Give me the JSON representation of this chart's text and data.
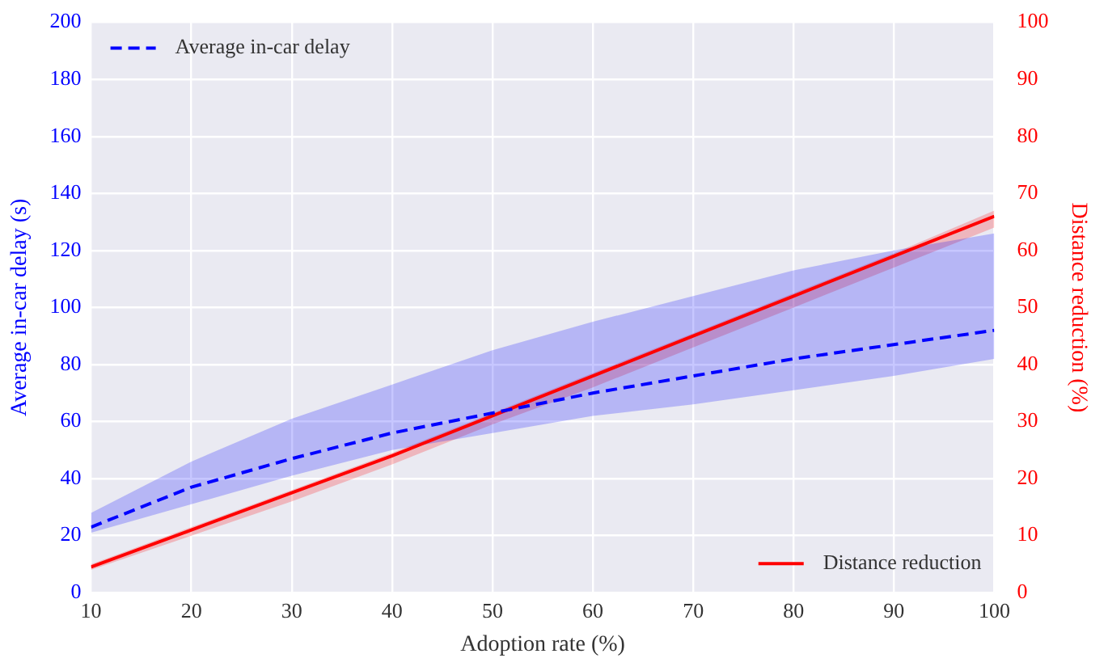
{
  "chart_data": {
    "type": "line",
    "xlabel": "Adoption rate (%)",
    "ylabel": "Average in-car delay (s)",
    "y2label": "Distance reduction (%)",
    "x": [
      10,
      20,
      30,
      40,
      50,
      60,
      70,
      80,
      90,
      100
    ],
    "xlim": [
      10,
      100
    ],
    "xticks": [
      10,
      20,
      30,
      40,
      50,
      60,
      70,
      80,
      90,
      100
    ],
    "ylim": [
      0,
      200
    ],
    "yticks": [
      0,
      20,
      40,
      60,
      80,
      100,
      120,
      140,
      160,
      180,
      200
    ],
    "y2lim": [
      0,
      100
    ],
    "y2ticks": [
      0,
      10,
      20,
      30,
      40,
      50,
      60,
      70,
      80,
      90,
      100
    ],
    "grid": true,
    "legend": "top left",
    "series": [
      {
        "name": "Average in-car delay",
        "color": "#0000ff",
        "line_style": "dashed",
        "values": [
          23,
          37,
          47,
          56,
          63,
          70,
          76,
          82,
          87,
          92
        ],
        "lower": [
          21,
          31,
          41,
          50,
          56,
          62,
          66,
          71,
          76,
          82
        ],
        "upper": [
          28,
          46,
          61,
          73,
          85,
          95,
          104,
          113,
          120,
          126
        ]
      },
      {
        "name": "Distance reduction",
        "color": "#ff0000",
        "line_style": "solid",
        "axis": "y2",
        "values": [
          4.5,
          11,
          17.5,
          24,
          31,
          38,
          45,
          52,
          59,
          66
        ],
        "lower": [
          4,
          10,
          16,
          22.5,
          29.5,
          36,
          43,
          50,
          57,
          64
        ],
        "upper": [
          5,
          11.5,
          18,
          24.5,
          31.5,
          38.5,
          45.5,
          52.5,
          59.5,
          67
        ]
      }
    ]
  }
}
